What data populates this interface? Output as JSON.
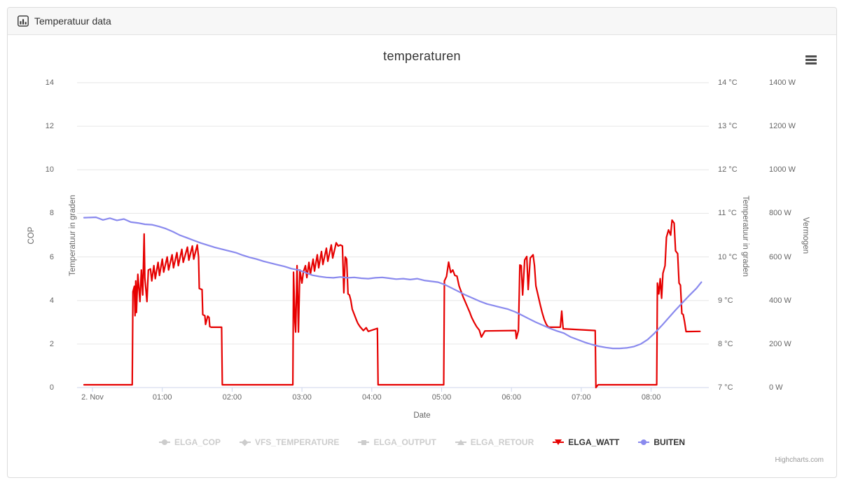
{
  "panel": {
    "title": "Temperatuur data"
  },
  "chart": {
    "title": "temperaturen",
    "credits": "Highcharts.com",
    "context_menu_icon": "hamburger-icon",
    "colors": {
      "elga_watt": "#e60000",
      "buiten": "#8a8aee",
      "disabled": "#cccccc",
      "gridline": "#e6e6e6",
      "axis_line": "#ccd6eb",
      "label": "#666666",
      "title": "#333333"
    },
    "x_axis": {
      "title": "Date",
      "labels": [
        "2. Nov",
        "01:00",
        "02:00",
        "03:00",
        "04:00",
        "05:00",
        "06:00",
        "07:00",
        "08:00"
      ]
    },
    "y_axes": [
      {
        "side": "left",
        "title": "COP",
        "labels": [
          "0",
          "2",
          "4",
          "6",
          "8",
          "10",
          "12",
          "14"
        ]
      },
      {
        "side": "left",
        "title": "Temperatuur in graden",
        "labels": []
      },
      {
        "side": "right",
        "title": "Temperatuur in graden",
        "labels": [
          "7 °C",
          "8 °C",
          "9 °C",
          "10 °C",
          "11 °C",
          "12 °C",
          "13 °C",
          "14 °C"
        ]
      },
      {
        "side": "right",
        "title": "Vermogen",
        "labels": [
          "0 W",
          "200 W",
          "400 W",
          "600 W",
          "800 W",
          "1000 W",
          "1200 W",
          "1400 W"
        ]
      }
    ],
    "legend": [
      {
        "label": "ELGA_COP",
        "enabled": false,
        "marker": "circle",
        "color": "#cccccc"
      },
      {
        "label": "VFS_TEMPERATURE",
        "enabled": false,
        "marker": "diamond",
        "color": "#cccccc"
      },
      {
        "label": "ELGA_OUTPUT",
        "enabled": false,
        "marker": "square",
        "color": "#cccccc"
      },
      {
        "label": "ELGA_RETOUR",
        "enabled": false,
        "marker": "triangle",
        "color": "#cccccc"
      },
      {
        "label": "ELGA_WATT",
        "enabled": true,
        "marker": "triangle-down",
        "color": "#e60000"
      },
      {
        "label": "BUITEN",
        "enabled": true,
        "marker": "circle",
        "color": "#8a8aee"
      }
    ]
  },
  "chart_data": {
    "type": "line",
    "title": "temperaturen",
    "xlabel": "Date",
    "x_unit": "hours since 2. Nov 00:00",
    "grid": true,
    "legend_position": "bottom",
    "axes": {
      "cop_left": {
        "min": 0,
        "max": 14,
        "tick": 2,
        "title": "COP"
      },
      "temp_left": {
        "title": "Temperatuur in graden",
        "labels_hidden": true
      },
      "temp_right": {
        "min": 7,
        "max": 14,
        "tick": 1,
        "unit": "°C",
        "title": "Temperatuur in graden"
      },
      "power_right": {
        "min": 0,
        "max": 1400,
        "tick": 200,
        "unit": "W",
        "title": "Vermogen"
      },
      "x_ticks_hours": [
        0,
        1,
        2,
        3,
        4,
        5,
        6,
        7,
        8
      ]
    },
    "hidden_series": [
      "ELGA_COP",
      "VFS_TEMPERATURE",
      "ELGA_OUTPUT",
      "ELGA_RETOUR"
    ],
    "series": [
      {
        "name": "ELGA_WATT",
        "axis": "power_right",
        "unit": "W",
        "color": "#e60000",
        "points": [
          [
            -0.12,
            13
          ],
          [
            0.57,
            13
          ],
          [
            0.58,
            440
          ],
          [
            0.6,
            465
          ],
          [
            0.61,
            330
          ],
          [
            0.62,
            490
          ],
          [
            0.63,
            345
          ],
          [
            0.65,
            520
          ],
          [
            0.68,
            395
          ],
          [
            0.7,
            540
          ],
          [
            0.72,
            425
          ],
          [
            0.74,
            705
          ],
          [
            0.75,
            505
          ],
          [
            0.78,
            395
          ],
          [
            0.8,
            540
          ],
          [
            0.83,
            545
          ],
          [
            0.85,
            490
          ],
          [
            0.88,
            560
          ],
          [
            0.9,
            500
          ],
          [
            0.94,
            575
          ],
          [
            0.96,
            515
          ],
          [
            1.0,
            590
          ],
          [
            1.02,
            530
          ],
          [
            1.07,
            600
          ],
          [
            1.09,
            540
          ],
          [
            1.14,
            610
          ],
          [
            1.16,
            550
          ],
          [
            1.21,
            620
          ],
          [
            1.23,
            560
          ],
          [
            1.28,
            635
          ],
          [
            1.3,
            575
          ],
          [
            1.36,
            645
          ],
          [
            1.38,
            585
          ],
          [
            1.43,
            650
          ],
          [
            1.45,
            590
          ],
          [
            1.5,
            655
          ],
          [
            1.52,
            600
          ],
          [
            1.53,
            455
          ],
          [
            1.57,
            450
          ],
          [
            1.58,
            335
          ],
          [
            1.61,
            330
          ],
          [
            1.62,
            290
          ],
          [
            1.65,
            328
          ],
          [
            1.67,
            322
          ],
          [
            1.68,
            280
          ],
          [
            1.7,
            277
          ],
          [
            1.85,
            277
          ],
          [
            1.86,
            13
          ],
          [
            2.87,
            13
          ],
          [
            2.88,
            530
          ],
          [
            2.9,
            300
          ],
          [
            2.91,
            255
          ],
          [
            2.93,
            560
          ],
          [
            2.95,
            255
          ],
          [
            2.97,
            540
          ],
          [
            3.0,
            480
          ],
          [
            3.02,
            530
          ],
          [
            3.05,
            560
          ],
          [
            3.07,
            505
          ],
          [
            3.1,
            575
          ],
          [
            3.12,
            520
          ],
          [
            3.16,
            590
          ],
          [
            3.18,
            535
          ],
          [
            3.22,
            610
          ],
          [
            3.24,
            550
          ],
          [
            3.28,
            625
          ],
          [
            3.3,
            565
          ],
          [
            3.35,
            640
          ],
          [
            3.37,
            580
          ],
          [
            3.42,
            655
          ],
          [
            3.44,
            595
          ],
          [
            3.49,
            665
          ],
          [
            3.52,
            650
          ],
          [
            3.55,
            655
          ],
          [
            3.58,
            650
          ],
          [
            3.6,
            435
          ],
          [
            3.62,
            600
          ],
          [
            3.64,
            590
          ],
          [
            3.66,
            430
          ],
          [
            3.68,
            425
          ],
          [
            3.7,
            400
          ],
          [
            3.72,
            360
          ],
          [
            3.75,
            335
          ],
          [
            3.78,
            310
          ],
          [
            3.8,
            295
          ],
          [
            3.83,
            280
          ],
          [
            3.88,
            262
          ],
          [
            3.92,
            275
          ],
          [
            3.95,
            258
          ],
          [
            4.08,
            272
          ],
          [
            4.09,
            13
          ],
          [
            5.03,
            13
          ],
          [
            5.04,
            490
          ],
          [
            5.07,
            510
          ],
          [
            5.1,
            576
          ],
          [
            5.13,
            528
          ],
          [
            5.16,
            540
          ],
          [
            5.19,
            515
          ],
          [
            5.22,
            512
          ],
          [
            5.25,
            467
          ],
          [
            5.28,
            441
          ],
          [
            5.31,
            415
          ],
          [
            5.34,
            393
          ],
          [
            5.37,
            370
          ],
          [
            5.4,
            348
          ],
          [
            5.43,
            322
          ],
          [
            5.46,
            303
          ],
          [
            5.5,
            280
          ],
          [
            5.54,
            264
          ],
          [
            5.57,
            232
          ],
          [
            5.62,
            260
          ],
          [
            6.06,
            262
          ],
          [
            6.07,
            225
          ],
          [
            6.1,
            262
          ],
          [
            6.12,
            563
          ],
          [
            6.14,
            560
          ],
          [
            6.16,
            425
          ],
          [
            6.19,
            586
          ],
          [
            6.22,
            602
          ],
          [
            6.24,
            450
          ],
          [
            6.27,
            595
          ],
          [
            6.31,
            610
          ],
          [
            6.33,
            560
          ],
          [
            6.35,
            467
          ],
          [
            6.38,
            425
          ],
          [
            6.41,
            383
          ],
          [
            6.44,
            344
          ],
          [
            6.47,
            312
          ],
          [
            6.5,
            290
          ],
          [
            6.53,
            277
          ],
          [
            6.7,
            277
          ],
          [
            6.72,
            351
          ],
          [
            6.74,
            270
          ],
          [
            7.2,
            262
          ],
          [
            7.21,
            0
          ],
          [
            7.24,
            13
          ],
          [
            8.08,
            13
          ],
          [
            8.09,
            480
          ],
          [
            8.11,
            430
          ],
          [
            8.13,
            500
          ],
          [
            8.15,
            410
          ],
          [
            8.17,
            525
          ],
          [
            8.2,
            560
          ],
          [
            8.22,
            690
          ],
          [
            8.25,
            724
          ],
          [
            8.28,
            700
          ],
          [
            8.3,
            769
          ],
          [
            8.33,
            755
          ],
          [
            8.35,
            628
          ],
          [
            8.38,
            615
          ],
          [
            8.4,
            480
          ],
          [
            8.42,
            470
          ],
          [
            8.44,
            340
          ],
          [
            8.46,
            335
          ],
          [
            8.48,
            300
          ],
          [
            8.5,
            257
          ],
          [
            8.7,
            258
          ]
        ]
      },
      {
        "name": "BUITEN",
        "axis": "temp_right",
        "unit": "°C",
        "color": "#8a8aee",
        "points": [
          [
            -0.12,
            10.9
          ],
          [
            0.05,
            10.91
          ],
          [
            0.15,
            10.85
          ],
          [
            0.25,
            10.89
          ],
          [
            0.35,
            10.84
          ],
          [
            0.45,
            10.87
          ],
          [
            0.55,
            10.8
          ],
          [
            0.65,
            10.78
          ],
          [
            0.75,
            10.75
          ],
          [
            0.85,
            10.74
          ],
          [
            0.95,
            10.7
          ],
          [
            1.05,
            10.65
          ],
          [
            1.15,
            10.58
          ],
          [
            1.25,
            10.5
          ],
          [
            1.35,
            10.44
          ],
          [
            1.45,
            10.38
          ],
          [
            1.55,
            10.32
          ],
          [
            1.65,
            10.27
          ],
          [
            1.75,
            10.22
          ],
          [
            1.85,
            10.18
          ],
          [
            1.95,
            10.14
          ],
          [
            2.05,
            10.1
          ],
          [
            2.15,
            10.04
          ],
          [
            2.25,
            9.99
          ],
          [
            2.35,
            9.95
          ],
          [
            2.45,
            9.9
          ],
          [
            2.55,
            9.86
          ],
          [
            2.65,
            9.82
          ],
          [
            2.75,
            9.78
          ],
          [
            2.85,
            9.73
          ],
          [
            2.95,
            9.7
          ],
          [
            3.05,
            9.64
          ],
          [
            3.15,
            9.58
          ],
          [
            3.25,
            9.55
          ],
          [
            3.35,
            9.53
          ],
          [
            3.45,
            9.52
          ],
          [
            3.55,
            9.54
          ],
          [
            3.65,
            9.52
          ],
          [
            3.75,
            9.53
          ],
          [
            3.85,
            9.51
          ],
          [
            3.95,
            9.5
          ],
          [
            4.05,
            9.52
          ],
          [
            4.15,
            9.53
          ],
          [
            4.25,
            9.51
          ],
          [
            4.35,
            9.49
          ],
          [
            4.45,
            9.5
          ],
          [
            4.55,
            9.48
          ],
          [
            4.65,
            9.5
          ],
          [
            4.75,
            9.46
          ],
          [
            4.85,
            9.44
          ],
          [
            4.95,
            9.42
          ],
          [
            5.05,
            9.36
          ],
          [
            5.15,
            9.28
          ],
          [
            5.25,
            9.2
          ],
          [
            5.35,
            9.12
          ],
          [
            5.45,
            9.05
          ],
          [
            5.55,
            8.98
          ],
          [
            5.65,
            8.92
          ],
          [
            5.75,
            8.88
          ],
          [
            5.85,
            8.84
          ],
          [
            5.95,
            8.8
          ],
          [
            6.05,
            8.74
          ],
          [
            6.15,
            8.66
          ],
          [
            6.25,
            8.58
          ],
          [
            6.35,
            8.5
          ],
          [
            6.45,
            8.43
          ],
          [
            6.55,
            8.36
          ],
          [
            6.65,
            8.3
          ],
          [
            6.75,
            8.25
          ],
          [
            6.85,
            8.16
          ],
          [
            6.95,
            8.1
          ],
          [
            7.05,
            8.04
          ],
          [
            7.15,
            7.99
          ],
          [
            7.25,
            7.95
          ],
          [
            7.35,
            7.92
          ],
          [
            7.45,
            7.9
          ],
          [
            7.55,
            7.9
          ],
          [
            7.65,
            7.91
          ],
          [
            7.75,
            7.94
          ],
          [
            7.85,
            8.0
          ],
          [
            7.95,
            8.1
          ],
          [
            8.05,
            8.25
          ],
          [
            8.15,
            8.42
          ],
          [
            8.25,
            8.6
          ],
          [
            8.35,
            8.78
          ],
          [
            8.45,
            8.95
          ],
          [
            8.55,
            9.12
          ],
          [
            8.65,
            9.28
          ],
          [
            8.72,
            9.42
          ]
        ]
      }
    ]
  }
}
